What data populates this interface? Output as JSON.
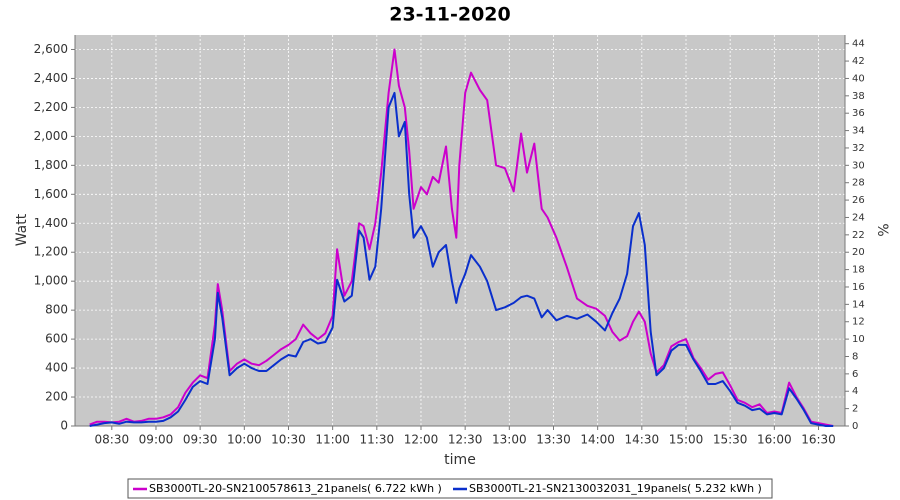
{
  "chart_data": {
    "type": "line",
    "title": "23-11-2020",
    "x_label": "time",
    "y_label": "Watt",
    "y2_label": "%",
    "xlim": [
      485,
      1008
    ],
    "xticks": [
      {
        "value": 510,
        "label": "08:30"
      },
      {
        "value": 540,
        "label": "09:00"
      },
      {
        "value": 570,
        "label": "09:30"
      },
      {
        "value": 600,
        "label": "10:00"
      },
      {
        "value": 630,
        "label": "10:30"
      },
      {
        "value": 660,
        "label": "11:00"
      },
      {
        "value": 690,
        "label": "11:30"
      },
      {
        "value": 720,
        "label": "12:00"
      },
      {
        "value": 750,
        "label": "12:30"
      },
      {
        "value": 780,
        "label": "13:00"
      },
      {
        "value": 810,
        "label": "13:30"
      },
      {
        "value": 840,
        "label": "14:00"
      },
      {
        "value": 870,
        "label": "14:30"
      },
      {
        "value": 900,
        "label": "15:00"
      },
      {
        "value": 930,
        "label": "15:30"
      },
      {
        "value": 960,
        "label": "16:00"
      },
      {
        "value": 990,
        "label": "16:30"
      }
    ],
    "ylim": [
      0,
      2700
    ],
    "yticks": [
      0,
      200,
      400,
      600,
      800,
      {
        "value": 1000,
        "label": "1,000"
      },
      {
        "value": 1200,
        "label": "1,200"
      },
      {
        "value": 1400,
        "label": "1,400"
      },
      {
        "value": 1600,
        "label": "1,600"
      },
      {
        "value": 1800,
        "label": "1,800"
      },
      {
        "value": 2000,
        "label": "2,000"
      },
      {
        "value": 2200,
        "label": "2,200"
      },
      {
        "value": 2400,
        "label": "2,400"
      },
      {
        "value": 2600,
        "label": "2,600"
      }
    ],
    "y2lim": [
      0,
      45
    ],
    "y2ticks": [
      0,
      2,
      4,
      6,
      8,
      10,
      12,
      14,
      16,
      18,
      20,
      22,
      24,
      26,
      28,
      30,
      32,
      34,
      36,
      38,
      40,
      42,
      44
    ],
    "grid": true,
    "x": [
      495,
      500,
      505,
      510,
      515,
      520,
      525,
      530,
      535,
      540,
      545,
      550,
      555,
      560,
      565,
      570,
      575,
      580,
      582,
      585,
      590,
      595,
      600,
      605,
      610,
      615,
      620,
      625,
      630,
      635,
      640,
      645,
      650,
      655,
      660,
      663,
      668,
      673,
      678,
      681,
      685,
      689,
      693,
      698,
      702,
      705,
      709,
      712,
      715,
      720,
      724,
      728,
      732,
      737,
      741,
      744,
      746,
      750,
      754,
      760,
      765,
      771,
      777,
      783,
      788,
      792,
      797,
      802,
      806,
      812,
      819,
      826,
      833,
      839,
      845,
      850,
      855,
      860,
      864,
      868,
      872,
      876,
      880,
      885,
      890,
      895,
      900,
      905,
      910,
      915,
      920,
      925,
      930,
      935,
      940,
      945,
      950,
      955,
      960,
      965,
      970,
      975,
      980,
      985,
      990,
      995,
      1000
    ],
    "series": [
      {
        "name": "SB3000TL-20-SN2100578613_21panels( 6.722 kWh )",
        "color": "#cc00cc",
        "values": [
          10,
          30,
          30,
          25,
          30,
          50,
          30,
          35,
          50,
          50,
          60,
          80,
          130,
          230,
          300,
          350,
          330,
          700,
          980,
          800,
          380,
          430,
          460,
          430,
          420,
          450,
          490,
          530,
          560,
          600,
          700,
          640,
          600,
          640,
          760,
          1220,
          900,
          1000,
          1400,
          1380,
          1220,
          1400,
          1750,
          2300,
          2600,
          2350,
          2200,
          1900,
          1500,
          1650,
          1600,
          1720,
          1680,
          1930,
          1500,
          1300,
          1800,
          2300,
          2440,
          2320,
          2250,
          1800,
          1780,
          1620,
          2020,
          1750,
          1950,
          1500,
          1440,
          1300,
          1100,
          880,
          830,
          810,
          760,
          650,
          590,
          620,
          720,
          790,
          720,
          500,
          370,
          420,
          550,
          580,
          600,
          470,
          400,
          320,
          360,
          370,
          280,
          180,
          160,
          130,
          150,
          90,
          100,
          90,
          300,
          200,
          120,
          30,
          20,
          10,
          0
        ]
      },
      {
        "name": "SB3000TL-21-SN2130032031_19panels( 5.232 kWh )",
        "color": "#0a2fcc",
        "values": [
          0,
          10,
          20,
          25,
          15,
          30,
          25,
          25,
          30,
          30,
          35,
          60,
          100,
          180,
          270,
          310,
          290,
          600,
          920,
          750,
          350,
          400,
          430,
          400,
          380,
          380,
          420,
          460,
          490,
          480,
          580,
          600,
          570,
          580,
          680,
          1010,
          860,
          900,
          1350,
          1300,
          1010,
          1100,
          1500,
          2200,
          2300,
          2000,
          2100,
          1600,
          1300,
          1380,
          1300,
          1100,
          1200,
          1250,
          1000,
          850,
          950,
          1050,
          1180,
          1100,
          1000,
          800,
          820,
          850,
          890,
          900,
          880,
          750,
          800,
          730,
          760,
          740,
          770,
          720,
          660,
          780,
          880,
          1050,
          1380,
          1470,
          1250,
          650,
          350,
          400,
          520,
          560,
          560,
          460,
          380,
          290,
          290,
          310,
          240,
          160,
          140,
          110,
          120,
          80,
          90,
          80,
          260,
          190,
          110,
          20,
          10,
          0,
          0
        ]
      }
    ]
  }
}
